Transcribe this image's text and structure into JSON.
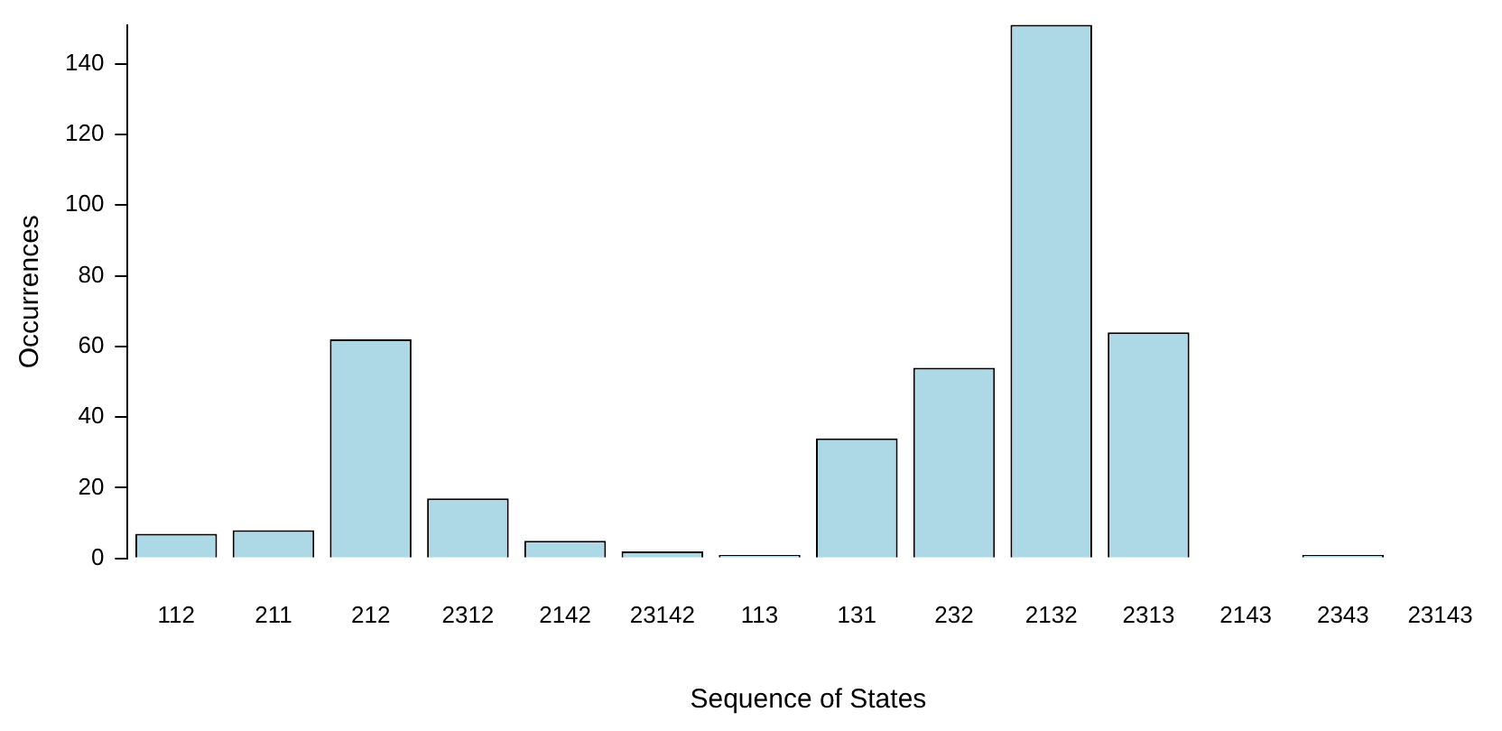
{
  "chart_data": {
    "type": "bar",
    "xlabel": "Sequence of States",
    "ylabel": "Occurrences",
    "categories": [
      "112",
      "211",
      "212",
      "2312",
      "2142",
      "23142",
      "113",
      "131",
      "232",
      "2132",
      "2313",
      "2143",
      "2343",
      "23143"
    ],
    "values": [
      7,
      8,
      62,
      17,
      5,
      2,
      1,
      34,
      54,
      151,
      64,
      0,
      1,
      0
    ],
    "color": "#add8e6",
    "ylim": [
      0,
      151
    ],
    "yticks": [
      0,
      20,
      40,
      60,
      80,
      100,
      120,
      140
    ],
    "grid": false
  }
}
